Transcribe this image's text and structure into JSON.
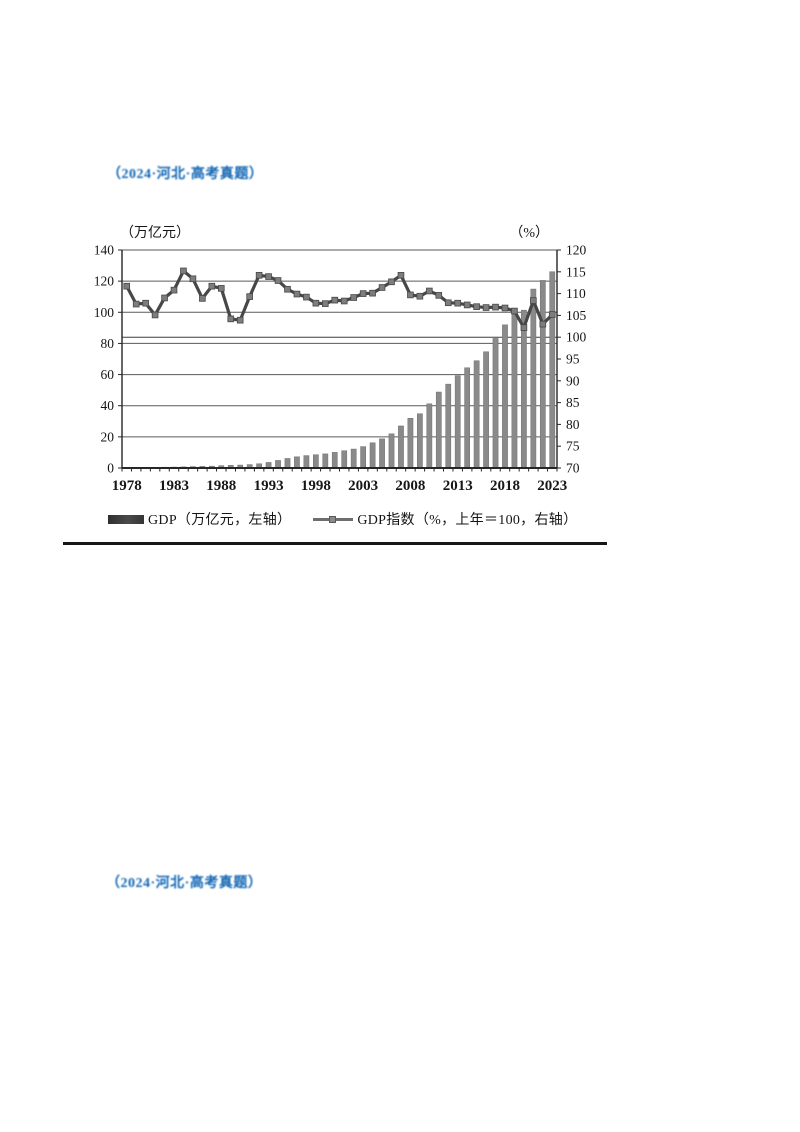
{
  "page": {
    "background": "#ffffff"
  },
  "question1": {
    "citation": "（2024·河北·高考真题）"
  },
  "question2": {
    "citation": "（2024·河北·高考真题）"
  },
  "chart": {
    "legend": [
      {
        "label": "GDP（万亿元，左轴）",
        "swatch": "bar-swatch",
        "color": "#3a3a3a"
      },
      {
        "label": "GDP指数（%，上年＝100，右轴）",
        "swatch": "line-swatch",
        "color": "#6e6e6e"
      }
    ],
    "colors": {
      "bar": "#8a8a8a",
      "line": "#474747",
      "marker": "#7d7d7d",
      "grid": "#5a5a5a",
      "axis": "#262626",
      "citation_blue": "#1266b4"
    }
  },
  "chart_data": {
    "type": "bar",
    "title": "",
    "x": [
      1978,
      1979,
      1980,
      1981,
      1982,
      1983,
      1984,
      1985,
      1986,
      1987,
      1988,
      1989,
      1990,
      1991,
      1992,
      1993,
      1994,
      1995,
      1996,
      1997,
      1998,
      1999,
      2000,
      2001,
      2002,
      2003,
      2004,
      2005,
      2006,
      2007,
      2008,
      2009,
      2010,
      2011,
      2012,
      2013,
      2014,
      2015,
      2016,
      2017,
      2018,
      2019,
      2020,
      2021,
      2022,
      2023
    ],
    "x_tick_labels": [
      "1978",
      "1983",
      "1988",
      "1993",
      "1998",
      "2003",
      "2008",
      "2013",
      "2018",
      "2023"
    ],
    "series": [
      {
        "name": "GDP（万亿元，左轴）",
        "type": "bar",
        "axis": "left",
        "values": [
          0.37,
          0.41,
          0.46,
          0.49,
          0.53,
          0.6,
          0.72,
          0.9,
          1.03,
          1.21,
          1.51,
          1.71,
          1.89,
          2.2,
          2.72,
          3.57,
          4.86,
          6.13,
          7.18,
          7.97,
          8.52,
          9.06,
          10.03,
          11.09,
          12.17,
          13.74,
          16.18,
          18.73,
          21.94,
          27.01,
          31.92,
          34.85,
          41.21,
          48.79,
          53.86,
          59.3,
          64.36,
          68.89,
          74.64,
          83.2,
          91.93,
          98.65,
          101.36,
          114.92,
          120.47,
          126.06
        ]
      },
      {
        "name": "GDP指数（%，上年＝100，右轴）",
        "type": "line",
        "axis": "right",
        "values": [
          111.7,
          107.6,
          107.8,
          105.1,
          109.0,
          110.8,
          115.2,
          113.4,
          108.9,
          111.7,
          111.2,
          104.2,
          103.9,
          109.3,
          114.2,
          113.9,
          113.0,
          111.0,
          109.9,
          109.2,
          107.8,
          107.7,
          108.5,
          108.3,
          109.1,
          110.0,
          110.1,
          111.4,
          112.7,
          114.2,
          109.7,
          109.4,
          110.6,
          109.6,
          107.9,
          107.8,
          107.4,
          107.0,
          106.8,
          106.9,
          106.7,
          106.0,
          102.2,
          108.4,
          103.0,
          105.2
        ]
      }
    ],
    "left_axis": {
      "label": "（万亿元）",
      "min": 0,
      "max": 140,
      "step": 20,
      "ticks": [
        "0",
        "20",
        "40",
        "60",
        "80",
        "100",
        "120",
        "140"
      ]
    },
    "right_axis": {
      "label": "（%）",
      "min": 70,
      "max": 120,
      "step": 5,
      "ticks": [
        "70",
        "75",
        "80",
        "85",
        "90",
        "95",
        "100",
        "105",
        "110",
        "115",
        "120"
      ],
      "reference_line": 100
    },
    "grid": true,
    "legend_position": "bottom"
  }
}
